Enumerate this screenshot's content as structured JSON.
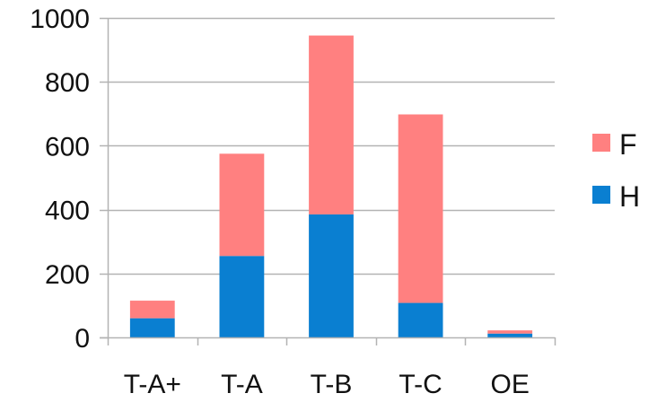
{
  "chart_data": {
    "type": "bar",
    "stacked": true,
    "categories": [
      "T-A+",
      "T-A",
      "T-B",
      "T-C",
      "OE"
    ],
    "series": [
      {
        "name": "H",
        "values": [
          60,
          255,
          385,
          108,
          12
        ]
      },
      {
        "name": "F",
        "values": [
          55,
          320,
          560,
          590,
          10
        ]
      }
    ],
    "ylim": [
      0,
      1000
    ],
    "yticks": [
      0,
      200,
      400,
      600,
      800,
      1000
    ],
    "title": "",
    "xlabel": "",
    "ylabel": "",
    "grid": true,
    "legend_position": "right",
    "legend_order": [
      "F",
      "H"
    ],
    "colors": {
      "H": "#0a7fd1",
      "F": "#ff8080",
      "grid": "#b3b3b3",
      "axis": "#b3b3b3"
    }
  }
}
